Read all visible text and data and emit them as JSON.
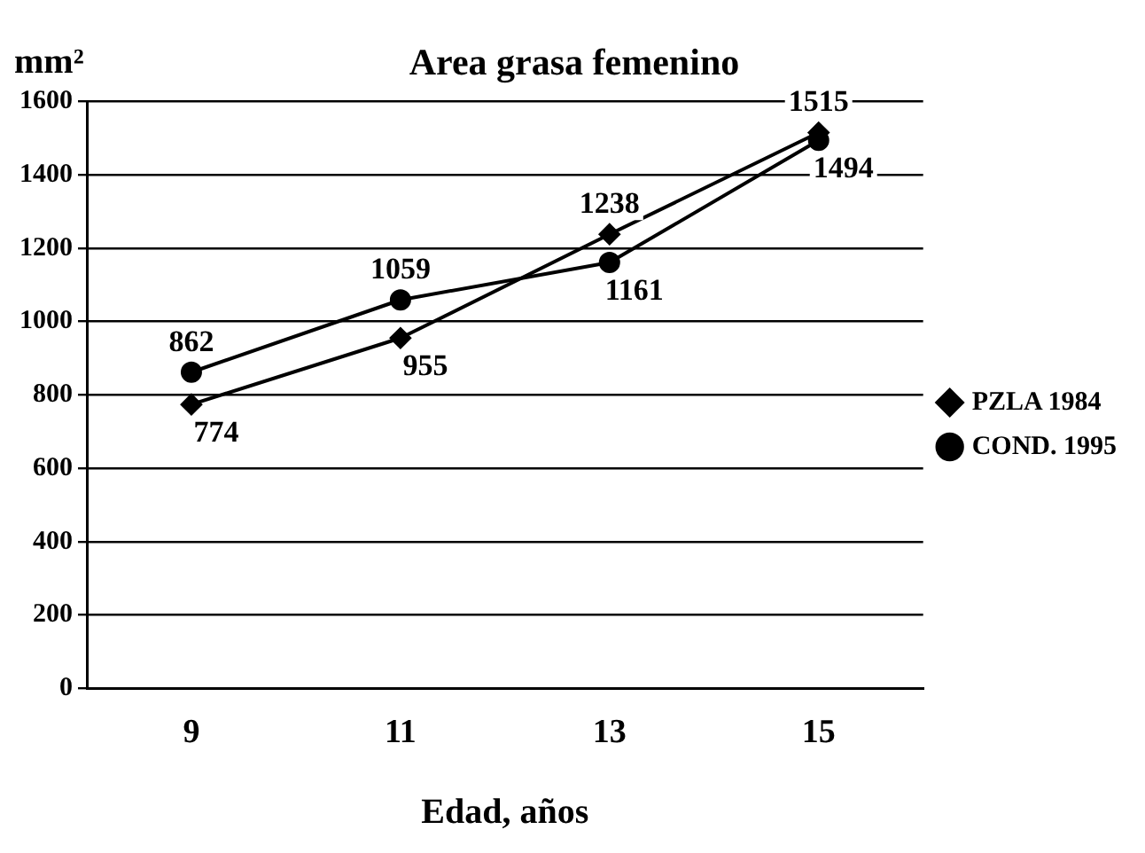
{
  "chart_data": {
    "type": "line",
    "title": "Area grasa femenino",
    "xlabel": "Edad, años",
    "ylabel": "mm²",
    "categories": [
      "9",
      "11",
      "13",
      "15"
    ],
    "series": [
      {
        "name": "PZLA 1984",
        "color": "#000000",
        "marker": "diamond",
        "values": [
          774,
          955,
          1238,
          1515
        ]
      },
      {
        "name": "COND. 1995",
        "color": "#000000",
        "marker": "circle",
        "values": [
          862,
          1059,
          1161,
          1494
        ]
      }
    ],
    "ylim": [
      0,
      1600
    ],
    "yticks": [
      0,
      200,
      400,
      600,
      800,
      1000,
      1200,
      1400,
      1600
    ],
    "grid": "y",
    "legend": "right",
    "data_labels": true,
    "line_style": "solid"
  }
}
